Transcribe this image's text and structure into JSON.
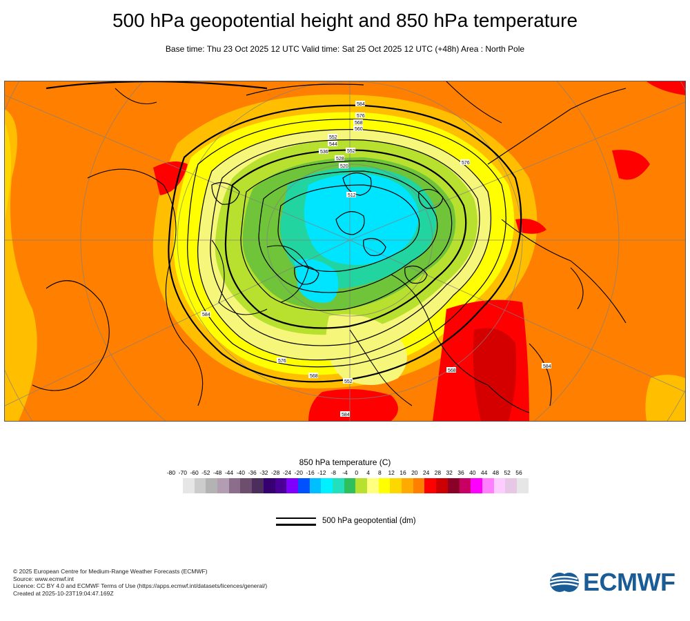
{
  "title": "500 hPa geopotential height and 850 hPa temperature",
  "subtitle": "Base time: Thu 23 Oct 2025 12 UTC Valid time: Sat 25 Oct 2025 12 UTC (+48h) Area : North Pole",
  "map": {
    "projection": "North Pole",
    "contour_labels": [
      "584",
      "576",
      "568",
      "560",
      "552",
      "544",
      "536",
      "528",
      "520",
      "512",
      "584",
      "576",
      "568",
      "552",
      "576",
      "568",
      "584",
      "584",
      "552"
    ],
    "colors": {
      "ocean_warm": "#ff7f00",
      "warm_rim": "#ffbf00",
      "yellow": "#ffff00",
      "light_yellow": "#f8f880",
      "green": "#b8e02e",
      "dark_green": "#5cb82e",
      "teal": "#22d4a0",
      "cyan": "#00e5ff",
      "red": "#ff0000",
      "dark_red": "#d40000",
      "contour": "#000000"
    }
  },
  "colorbar": {
    "title": "850 hPa temperature (C)",
    "ticks": [
      "-80",
      "-70",
      "-60",
      "-52",
      "-48",
      "-44",
      "-40",
      "-36",
      "-32",
      "-28",
      "-24",
      "-20",
      "-16",
      "-12",
      "-8",
      "-4",
      "0",
      "4",
      "8",
      "12",
      "16",
      "20",
      "24",
      "28",
      "32",
      "36",
      "40",
      "44",
      "48",
      "52",
      "56"
    ],
    "colors": [
      "#e6e6e6",
      "#cccccc",
      "#b3b3b3",
      "#b39db3",
      "#8c6e8c",
      "#6e4e6e",
      "#4b2e5c",
      "#360070",
      "#4a0096",
      "#8000ff",
      "#0052ff",
      "#00bfff",
      "#00f0ff",
      "#22e0bb",
      "#2ec05c",
      "#b8e02e",
      "#ffff80",
      "#ffff00",
      "#ffd700",
      "#ffaa00",
      "#ff7f00",
      "#ff0000",
      "#cc0000",
      "#8b0026",
      "#c80064",
      "#ff00ff",
      "#ff80ff",
      "#ffccff",
      "#e6c8e6",
      "#e6e6e6"
    ]
  },
  "legend": {
    "label": "500 hPa geopotential (dm)"
  },
  "credits": [
    "© 2025 European Centre for Medium-Range Weather Forecasts (ECMWF)",
    "Source: www.ecmwf.int",
    "Licence: CC BY 4.0 and ECMWF Terms of Use (https://apps.ecmwf.int/datasets/licences/general/)",
    "Created at 2025-10-23T19:04:47.169Z"
  ],
  "logo": {
    "text": "ECMWF"
  }
}
